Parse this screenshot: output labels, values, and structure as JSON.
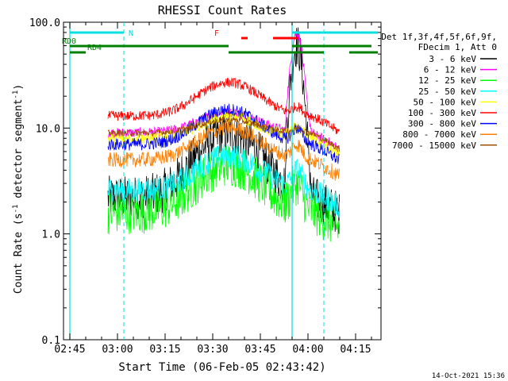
{
  "chart_data": {
    "type": "line",
    "title": "RHESSI Count Rates",
    "xlabel": "Start Time (06-Feb-05 02:43:42)",
    "ylabel_main": "Count Rate (s",
    "ylabel_sup": "-1",
    "ylabel_rest": " detector segment",
    "ylabel_sup2": "-1",
    "ylabel_end": ")",
    "yscale": "log",
    "ylim": [
      0.1,
      100.0
    ],
    "xlim_minutes": [
      -2,
      38
    ],
    "x_ticks": [
      {
        "m": 0,
        "label": "02:45"
      },
      {
        "m": 15,
        "label": "03:00"
      },
      {
        "m": 30,
        "label": "03:15"
      },
      {
        "m": 45,
        "label": "03:30"
      },
      {
        "m": 60,
        "label": "03:45"
      },
      {
        "m": 75,
        "label": "04:00"
      },
      {
        "m": 90,
        "label": "04:15"
      }
    ],
    "y_ticks": [
      {
        "v": 0.1,
        "label": "0.1"
      },
      {
        "v": 1.0,
        "label": "1.0"
      },
      {
        "v": 10.0,
        "label": "10.0"
      },
      {
        "v": 100.0,
        "label": "100.0"
      }
    ],
    "legend_header": [
      "Det 1f,3f,4f,5f,6f,9f,",
      "FDecim 1, Att 0"
    ],
    "legend_placement": "right",
    "series": [
      {
        "name": "3 - 6 keV",
        "color": "#000000",
        "base": 2.2,
        "peak": 9.0,
        "flare": 60.0,
        "noise": 0.35
      },
      {
        "name": "6 - 12 keV",
        "color": "#ff00ff",
        "base": 9.0,
        "peak": 14.0,
        "flare": 80.0,
        "noise": 0.08
      },
      {
        "name": "12 - 25 keV",
        "color": "#00ff00",
        "base": 1.6,
        "peak": 4.5,
        "flare": 3.0,
        "noise": 0.35
      },
      {
        "name": "25 - 50 keV",
        "color": "#00ffff",
        "base": 2.6,
        "peak": 5.5,
        "flare": 4.0,
        "noise": 0.2
      },
      {
        "name": "50 - 100 keV",
        "color": "#ffff00",
        "base": 8.0,
        "peak": 13.0,
        "flare": 10.0,
        "noise": 0.1
      },
      {
        "name": "100 - 300 keV",
        "color": "#ff0000",
        "base": 13.0,
        "peak": 27.0,
        "flare": 16.0,
        "noise": 0.08
      },
      {
        "name": "300 - 800 keV",
        "color": "#0000ff",
        "base": 7.0,
        "peak": 15.0,
        "flare": 10.0,
        "noise": 0.1
      },
      {
        "name": "800 - 7000 keV",
        "color": "#ff8000",
        "base": 5.0,
        "peak": 10.0,
        "flare": 7.0,
        "noise": 0.12
      },
      {
        "name": "7000 - 15000 keV",
        "color": "#a05000",
        "base": 9.0,
        "peak": 12.0,
        "flare": 10.0,
        "noise": 0.05
      }
    ],
    "data_range_minutes": [
      12,
      85
    ],
    "night_markers": {
      "dashed_minutes": [
        17,
        80
      ],
      "solid_minutes": [
        0,
        70
      ],
      "label": "N"
    },
    "flags": [
      {
        "label": "RD0",
        "color": "#008000",
        "segments": [
          [
            0,
            50
          ],
          [
            70,
            95
          ]
        ]
      },
      {
        "label": "RD4",
        "color": "#008000",
        "segments": [
          [
            0,
            5
          ],
          [
            50,
            80
          ],
          [
            88,
            97
          ]
        ]
      },
      {
        "label": "F",
        "color": "#ff0000",
        "segments": [
          [
            54,
            56
          ],
          [
            64,
            72
          ]
        ]
      }
    ],
    "timestamp": "14-Oct-2021 15:36"
  }
}
